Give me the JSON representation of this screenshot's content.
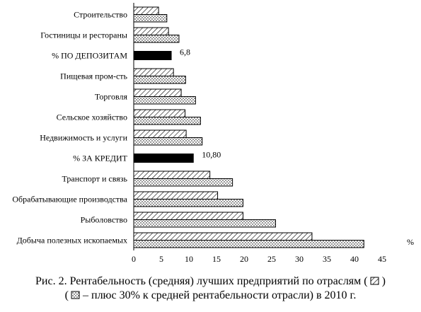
{
  "chart_data": {
    "type": "bar",
    "orientation": "horizontal",
    "categories": [
      "Строительство",
      "Гостиницы и рестораны",
      "% ПО ДЕПОЗИТАМ",
      "Пищевая пром-сть",
      "Торговля",
      "Сельское хозяйство",
      "Недвижимость и услуги",
      "% ЗА КРЕДИТ",
      "Транспорт и связь",
      "Обрабатывающие производства",
      "Рыболовство",
      "Добыча полезных ископаемых"
    ],
    "series": [
      {
        "name": "Рентабельность (средняя)",
        "pattern": "hatch",
        "values": [
          4.5,
          6.3,
          null,
          7.2,
          8.6,
          9.3,
          9.5,
          null,
          13.8,
          15.2,
          19.8,
          32.3
        ]
      },
      {
        "name": "плюс 30% к средней рентабельности отрасли",
        "pattern": "dots",
        "values": [
          6.0,
          8.2,
          null,
          9.4,
          11.2,
          12.1,
          12.4,
          null,
          17.9,
          19.8,
          25.7,
          41.7
        ]
      },
      {
        "name": "",
        "pattern": "solid",
        "values": [
          null,
          null,
          6.8,
          null,
          null,
          null,
          null,
          10.8,
          null,
          null,
          null,
          null
        ]
      }
    ],
    "data_labels": {
      "% ПО ДЕПОЗИТАМ": "6,8",
      "% ЗА КРЕДИТ": "10,80"
    },
    "xlim": [
      0,
      45
    ],
    "xticks": [
      "0",
      "5",
      "10",
      "15",
      "20",
      "25",
      "30",
      "35",
      "40",
      "45"
    ],
    "xunit": "%",
    "grid": false,
    "colors": {
      "bar_fill": "#ffffff",
      "bar_stroke": "#000000",
      "solid": "#000000"
    }
  },
  "caption": {
    "line1_before": "Рис. 2. Рентабельность (средняя) лучших предприятий по отраслям (",
    "line1_after": ")",
    "line2_before": "(",
    "line2_after": "– плюс 30% к средней рентабельности отрасли) в 2010 г."
  }
}
